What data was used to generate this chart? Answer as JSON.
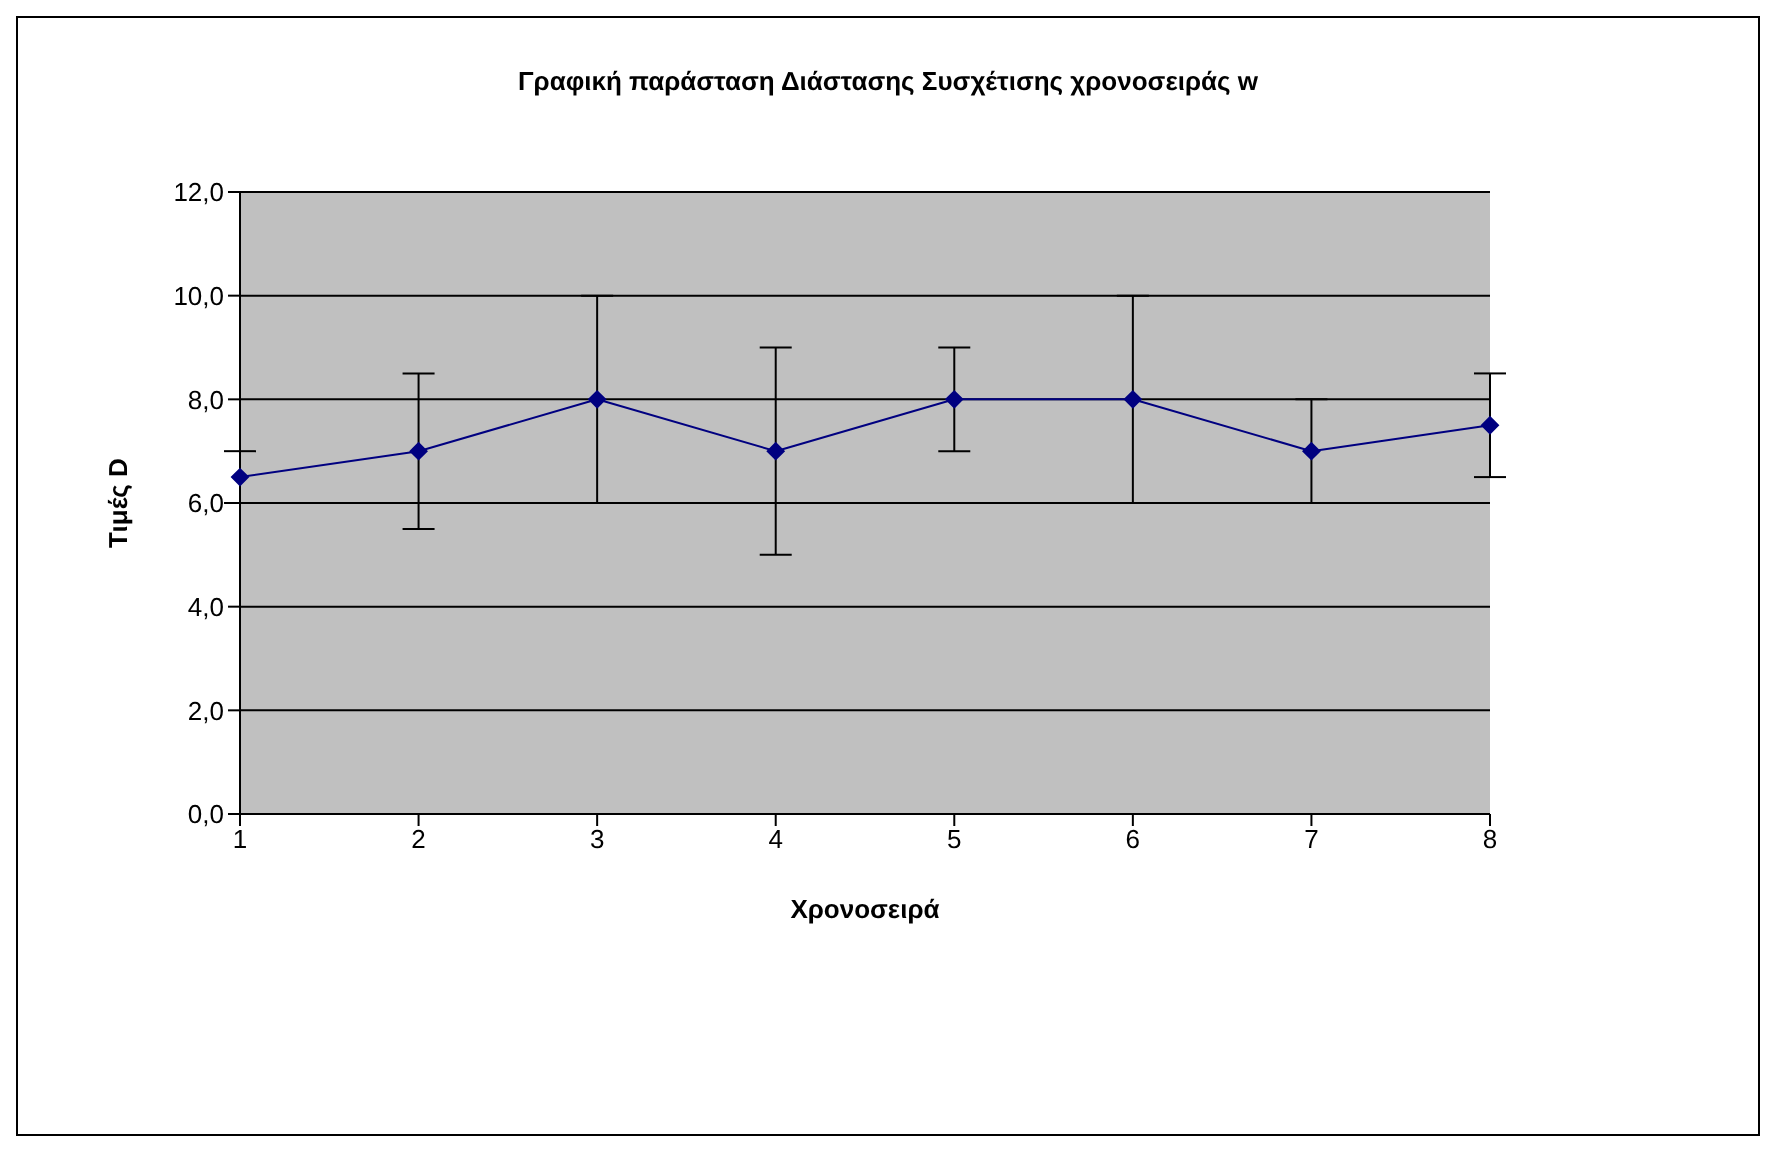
{
  "chart_data": {
    "type": "line",
    "title": "Γραφική παράσταση Διάστασης Συσχέτισης χρονοσειράς w",
    "xlabel": "Χρονοσειρά",
    "ylabel": "Τιμές D",
    "categories": [
      "1",
      "2",
      "3",
      "4",
      "5",
      "6",
      "7",
      "8"
    ],
    "series": [
      {
        "color": "#000080",
        "values": [
          6.5,
          7,
          8,
          7,
          8,
          8,
          7,
          7.5
        ],
        "errors": [
          0.5,
          1.5,
          2,
          2,
          1,
          2,
          1,
          1
        ]
      }
    ],
    "ylim": [
      0,
      12
    ],
    "yticks": [
      {
        "value": 0,
        "label": "0,0"
      },
      {
        "value": 2,
        "label": "2,0"
      },
      {
        "value": 4,
        "label": "4,0"
      },
      {
        "value": 6,
        "label": "6,0"
      },
      {
        "value": 8,
        "label": "8,0"
      },
      {
        "value": 10,
        "label": "10,0"
      },
      {
        "value": 12,
        "label": "12,0"
      }
    ],
    "grid": "y",
    "legend": false,
    "marker": "diamond",
    "line_style": "solid"
  }
}
